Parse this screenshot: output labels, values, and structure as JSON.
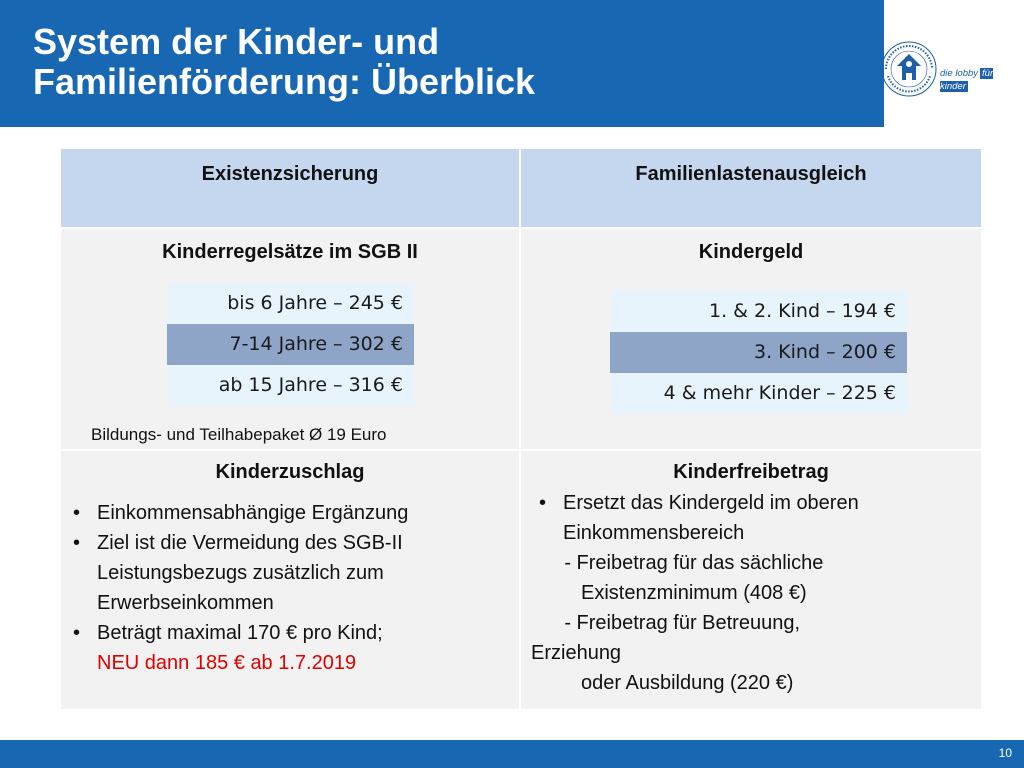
{
  "header": {
    "title": "System der Kinder- und\nFamilienförderung: Überblick",
    "logo_tag_plain": "die lobby",
    "logo_tag_boxed": "für kinder",
    "logo_seal_text": "DEUTSCHER KINDERSCHUTZBUND (DKSB) E.V."
  },
  "table": {
    "headers": [
      "Existenzsicherung",
      "Familienlastenausgleich"
    ],
    "regelsaetze": {
      "title": "Kinderregelsätze im SGB II",
      "rows": [
        "bis 6 Jahre – 245 €",
        "7-14 Jahre – 302 €",
        "ab 15 Jahre – 316 €"
      ],
      "note": "Bildungs- und Teilhabepaket Ø  19 Euro"
    },
    "kindergeld": {
      "title": "Kindergeld",
      "rows": [
        "1. & 2. Kind –  194 €",
        "3. Kind – 200 €",
        "4 & mehr Kinder – 225 €"
      ]
    },
    "kinderzuschlag": {
      "title": "Kinderzuschlag",
      "bullets": [
        "Einkommensabhängige Ergänzung",
        "Ziel ist die Vermeidung des SGB-II Leistungsbezugs zusätzlich zum Erwerbseinkommen",
        "Beträgt maximal 170 € pro Kind;"
      ],
      "highlight": "NEU dann 185 € ab 1.7.2019"
    },
    "kinderfreibetrag": {
      "title": "Kinderfreibetrag",
      "bullet": "Ersetzt das Kindergeld im oberen Einkommensbereich",
      "lines": [
        "      - Freibetrag für das sächliche",
        "         Existenzminimum (408 €)",
        "      - Freibetrag für Betreuung,",
        "Erziehung",
        "         oder Ausbildung (220 €)"
      ]
    }
  },
  "footer": {
    "page_number": "10"
  },
  "colors": {
    "brand_blue": "#1767b3",
    "header_cell": "#c5d6ef",
    "body_cell": "#f2f2f2",
    "highlight_red": "#e00000"
  }
}
